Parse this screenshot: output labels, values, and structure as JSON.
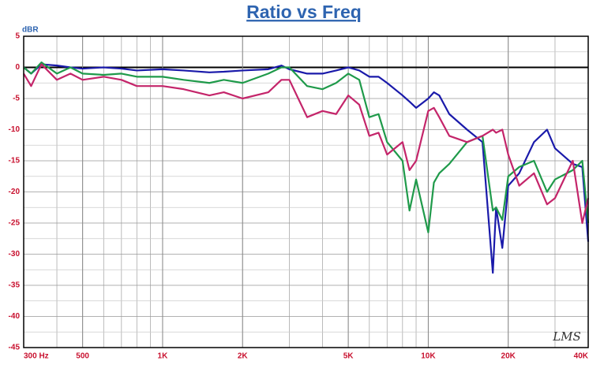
{
  "chart_data": {
    "type": "line",
    "title": "Ratio vs Freq",
    "y_label": "dBR",
    "watermark": "LMS",
    "x": [
      300,
      320,
      350,
      400,
      450,
      500,
      600,
      700,
      800,
      1000,
      1200,
      1500,
      1700,
      2000,
      2500,
      2800,
      3000,
      3500,
      4000,
      4500,
      5000,
      5500,
      6000,
      6500,
      7000,
      8000,
      8500,
      9000,
      10000,
      10500,
      11000,
      12000,
      14000,
      16000,
      17500,
      18000,
      19000,
      20000,
      22000,
      25000,
      28000,
      30000,
      35000,
      38000,
      40000
    ],
    "series": [
      {
        "color": "#1a1aaa",
        "values": [
          0,
          -1,
          0.5,
          0.3,
          0,
          -0.2,
          0,
          -0.2,
          -0.5,
          -0.3,
          -0.5,
          -0.8,
          -0.7,
          -0.5,
          -0.3,
          0.3,
          -0.3,
          -1,
          -1,
          -0.5,
          0,
          -0.5,
          -1.5,
          -1.5,
          -2.5,
          -4.5,
          -5.5,
          -6.5,
          -5,
          -4,
          -4.5,
          -7.5,
          -10,
          -12,
          -33,
          -22.5,
          -29,
          -19,
          -17,
          -12,
          -10,
          -13,
          -15.5,
          -16,
          -28
        ]
      },
      {
        "color": "#1f9a4a",
        "values": [
          0,
          -1,
          0.8,
          -1,
          0,
          -1,
          -1.2,
          -1,
          -1.5,
          -1.5,
          -2,
          -2.5,
          -2,
          -2.5,
          -1,
          0,
          0,
          -3,
          -3.5,
          -2.5,
          -1,
          -2,
          -8,
          -7.5,
          -12,
          -15,
          -23,
          -18,
          -26.5,
          -18.5,
          -17,
          -15.5,
          -12,
          -11,
          -23,
          -22.5,
          -24.5,
          -17.5,
          -16,
          -15,
          -20,
          -18,
          -16.5,
          -15,
          -25
        ]
      },
      {
        "color": "#c4256a",
        "values": [
          -1,
          -3,
          0.5,
          -2,
          -1,
          -2,
          -1.5,
          -2,
          -3,
          -3,
          -3.5,
          -4.5,
          -4,
          -5,
          -4,
          -2,
          -2,
          -8,
          -7,
          -7.5,
          -4.5,
          -6,
          -11,
          -10.5,
          -14,
          -12,
          -16.5,
          -15,
          -7,
          -6.5,
          -8,
          -11,
          -12,
          -11,
          -10,
          -10.5,
          -10,
          -14,
          -19,
          -17,
          -22,
          -21,
          -15,
          -25,
          -21
        ]
      }
    ],
    "xlim": [
      300,
      40000
    ],
    "log_x": true,
    "xticks": [
      {
        "value": 300,
        "label": "300 Hz"
      },
      500,
      {
        "value": 1000,
        "label": "1K"
      },
      {
        "value": 2000,
        "label": "2K"
      },
      {
        "value": 5000,
        "label": "5K"
      },
      {
        "value": 10000,
        "label": "10K"
      },
      {
        "value": 20000,
        "label": "20K"
      },
      {
        "value": 40000,
        "label": "40K"
      }
    ],
    "ylim": [
      -45,
      5
    ],
    "yticks": [
      5,
      0,
      -5,
      -10,
      -15,
      -20,
      -25,
      -30,
      -35,
      -40,
      -45
    ],
    "grid": true
  }
}
